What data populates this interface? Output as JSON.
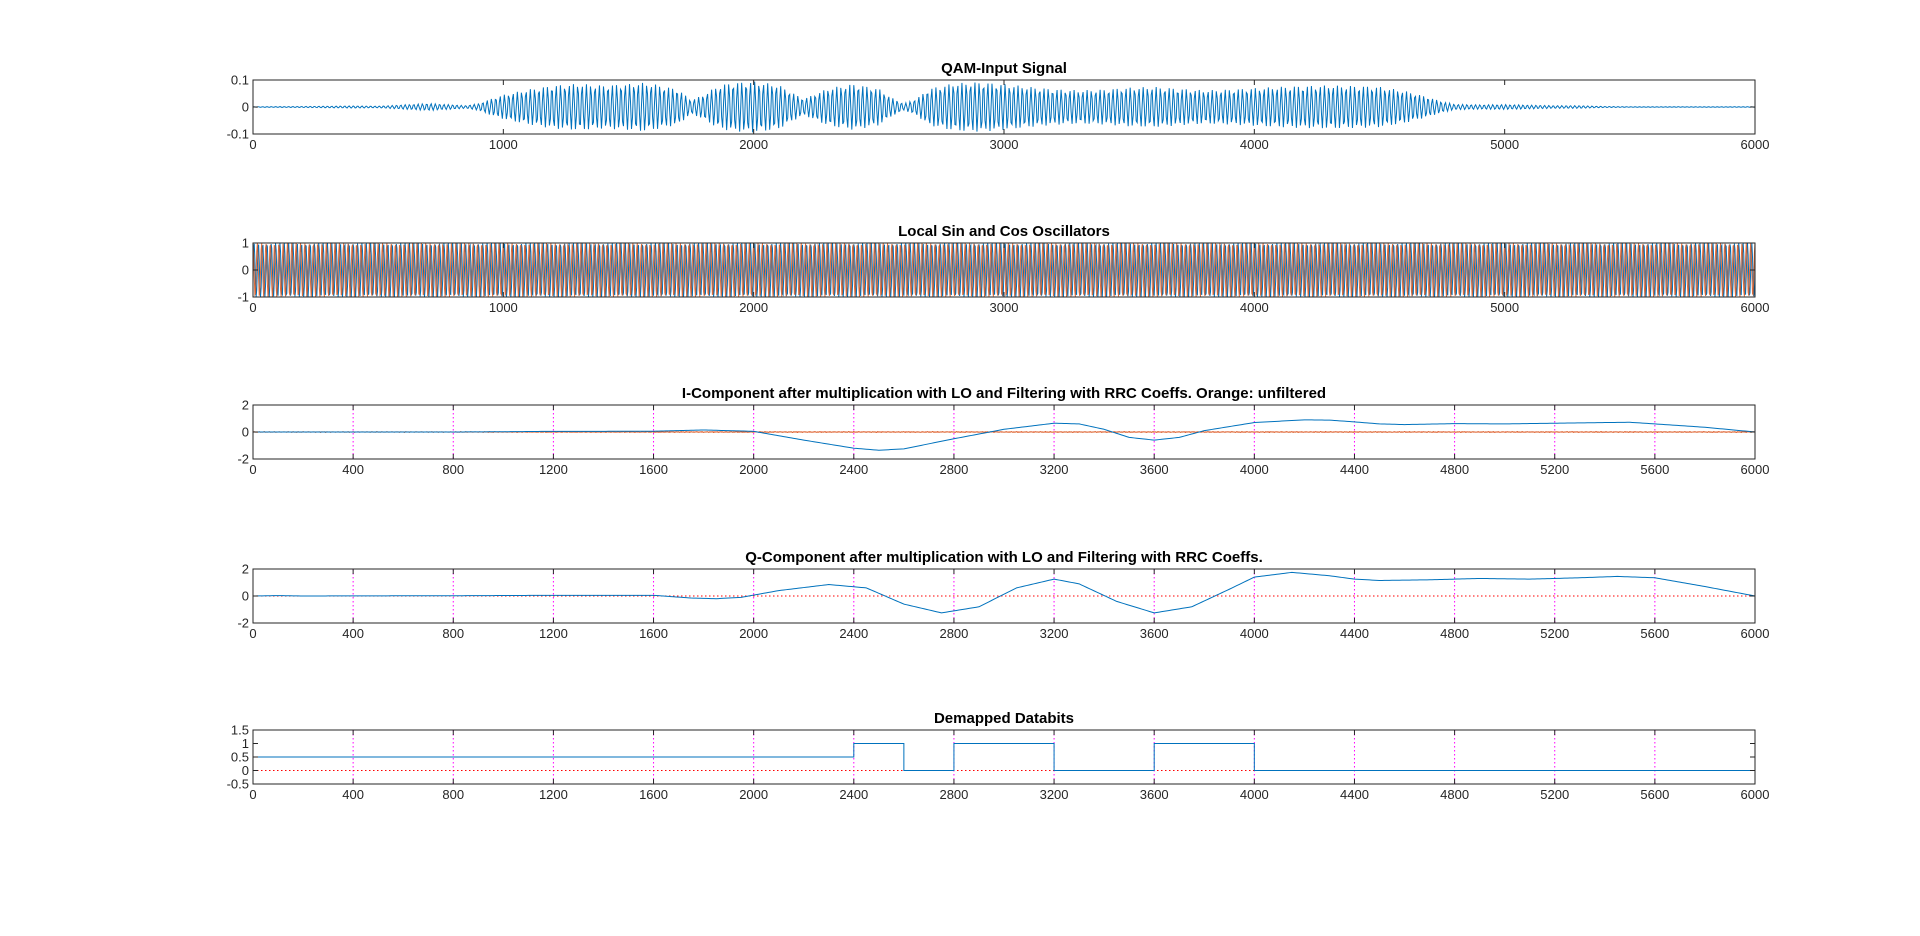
{
  "chart_data": [
    {
      "type": "line",
      "title": "QAM-Input Signal",
      "xlim": [
        0,
        6000
      ],
      "ylim": [
        -0.1,
        0.1
      ],
      "xticks": [
        0,
        1000,
        2000,
        3000,
        4000,
        5000,
        6000
      ],
      "yticks": [
        -0.1,
        0,
        0.1
      ],
      "ytick_labels": [
        "-0.1",
        "0",
        "0.1"
      ],
      "grid": false,
      "carrier_cycles_per_1000_samples": 58,
      "series": [
        {
          "color": "#0072BD",
          "envelope": {
            "x": [
              0,
              200,
              400,
              500,
              600,
              700,
              780,
              850,
              900,
              950,
              1000,
              1100,
              1200,
              1300,
              1400,
              1500,
              1550,
              1600,
              1700,
              1750,
              1800,
              1850,
              1900,
              2000,
              2100,
              2150,
              2200,
              2250,
              2300,
              2400,
              2500,
              2550,
              2600,
              2650,
              2700,
              2800,
              2900,
              3000,
              3100,
              3200,
              3300,
              3400,
              3500,
              3600,
              3700,
              3800,
              3900,
              4000,
              4100,
              4200,
              4300,
              4400,
              4500,
              4600,
              4700,
              4750,
              4800,
              4900,
              5000,
              5100,
              5200,
              5300,
              5400,
              5500,
              6000
            ],
            "y": [
              0.001,
              0.002,
              0.004,
              0.003,
              0.008,
              0.013,
              0.009,
              0.005,
              0.012,
              0.03,
              0.045,
              0.065,
              0.08,
              0.086,
              0.08,
              0.085,
              0.09,
              0.085,
              0.065,
              0.025,
              0.045,
              0.075,
              0.088,
              0.095,
              0.082,
              0.055,
              0.03,
              0.05,
              0.07,
              0.085,
              0.068,
              0.035,
              0.012,
              0.03,
              0.068,
              0.088,
              0.092,
              0.085,
              0.075,
              0.066,
              0.062,
              0.065,
              0.072,
              0.075,
              0.068,
              0.062,
              0.065,
              0.07,
              0.075,
              0.078,
              0.08,
              0.078,
              0.075,
              0.06,
              0.035,
              0.02,
              0.01,
              0.008,
              0.009,
              0.007,
              0.005,
              0.005,
              0.002,
              0.001,
              0.001
            ]
          }
        }
      ]
    },
    {
      "type": "line",
      "title": "Local Sin and Cos Oscillators",
      "xlim": [
        0,
        6000
      ],
      "ylim": [
        -1,
        1
      ],
      "xticks": [
        0,
        1000,
        2000,
        3000,
        4000,
        5000,
        6000
      ],
      "yticks": [
        -1,
        0,
        1
      ],
      "ytick_labels": [
        "-1",
        "0",
        "1"
      ],
      "grid": false,
      "oscillator_cycles_per_1000_samples": 58,
      "series": [
        {
          "color": "#0072BD"
        },
        {
          "color": "#D95319"
        }
      ]
    },
    {
      "type": "line",
      "title": "I-Component after multiplication with LO and Filtering with RRC Coeffs. Orange: unfiltered",
      "xlim": [
        0,
        6000
      ],
      "ylim": [
        -2,
        2
      ],
      "xticks": [
        0,
        400,
        800,
        1200,
        1600,
        2000,
        2400,
        2800,
        3200,
        3600,
        4000,
        4400,
        4800,
        5200,
        5600,
        6000
      ],
      "yticks": [
        -2,
        0,
        2
      ],
      "ytick_labels": [
        "-2",
        "0",
        "2"
      ],
      "vertical_markers_color": "#FF00FF",
      "vertical_markers_x": [
        400,
        800,
        1200,
        1600,
        2000,
        2400,
        2800,
        3200,
        3600,
        4000,
        4400,
        4800,
        5200,
        5600
      ],
      "zero_line_color": "#FF0000",
      "series": [
        {
          "color": "#0072BD",
          "x": [
            0,
            800,
            1000,
            1200,
            1400,
            1600,
            1800,
            1900,
            2000,
            2200,
            2400,
            2500,
            2600,
            2800,
            3000,
            3200,
            3300,
            3400,
            3500,
            3600,
            3700,
            3800,
            4000,
            4200,
            4300,
            4400,
            4500,
            4600,
            4800,
            5000,
            5200,
            5400,
            5500,
            5600,
            5800,
            6000
          ],
          "y": [
            0,
            0,
            0.02,
            0.05,
            0.05,
            0.06,
            0.15,
            0.1,
            0.05,
            -0.6,
            -1.2,
            -1.35,
            -1.25,
            -0.5,
            0.2,
            0.65,
            0.6,
            0.2,
            -0.4,
            -0.6,
            -0.4,
            0.1,
            0.7,
            0.9,
            0.88,
            0.75,
            0.6,
            0.55,
            0.62,
            0.6,
            0.65,
            0.7,
            0.72,
            0.6,
            0.35,
            0
          ]
        },
        {
          "color": "#D95319",
          "x": [
            0,
            6000
          ],
          "y": [
            0,
            0
          ],
          "noise_amplitude": 0.03
        }
      ]
    },
    {
      "type": "line",
      "title": "Q-Component after multiplication with LO and Filtering with RRC Coeffs.",
      "xlim": [
        0,
        6000
      ],
      "ylim": [
        -2,
        2
      ],
      "xticks": [
        0,
        400,
        800,
        1200,
        1600,
        2000,
        2400,
        2800,
        3200,
        3600,
        4000,
        4400,
        4800,
        5200,
        5600,
        6000
      ],
      "yticks": [
        -2,
        0,
        2
      ],
      "ytick_labels": [
        "-2",
        "0",
        "2"
      ],
      "vertical_markers_color": "#FF00FF",
      "vertical_markers_x": [
        400,
        800,
        1200,
        1600,
        2000,
        2400,
        2800,
        3200,
        3600,
        4000,
        4400,
        4800,
        5200,
        5600
      ],
      "zero_line_color": "#FF0000",
      "series": [
        {
          "color": "#0072BD",
          "x": [
            0,
            100,
            200,
            400,
            800,
            1200,
            1600,
            1750,
            1850,
            1950,
            2100,
            2300,
            2450,
            2600,
            2750,
            2900,
            3050,
            3200,
            3300,
            3450,
            3600,
            3750,
            3900,
            4000,
            4150,
            4300,
            4400,
            4500,
            4700,
            4900,
            5100,
            5300,
            5450,
            5600,
            5800,
            6000
          ],
          "y": [
            0,
            0.03,
            0,
            0.01,
            0.02,
            0.05,
            0.05,
            -0.15,
            -0.2,
            -0.1,
            0.4,
            0.85,
            0.6,
            -0.6,
            -1.25,
            -0.8,
            0.6,
            1.25,
            0.9,
            -0.4,
            -1.25,
            -0.8,
            0.5,
            1.4,
            1.75,
            1.5,
            1.25,
            1.15,
            1.2,
            1.3,
            1.25,
            1.35,
            1.45,
            1.35,
            0.7,
            0
          ]
        }
      ]
    },
    {
      "type": "line",
      "title": "Demapped Databits",
      "xlim": [
        0,
        6000
      ],
      "ylim": [
        -0.5,
        1.5
      ],
      "xticks": [
        0,
        400,
        800,
        1200,
        1600,
        2000,
        2400,
        2800,
        3200,
        3600,
        4000,
        4400,
        4800,
        5200,
        5600,
        6000
      ],
      "yticks": [
        -0.5,
        0,
        0.5,
        1,
        1.5
      ],
      "ytick_labels": [
        "-0.5",
        "0",
        "0.5",
        "1",
        "1.5"
      ],
      "vertical_markers_color": "#FF00FF",
      "vertical_markers_x": [
        400,
        800,
        1200,
        1600,
        2000,
        2400,
        2800,
        3200,
        3600,
        4000,
        4400,
        4800,
        5200,
        5600
      ],
      "zero_line_color": "#FF0000",
      "series": [
        {
          "color": "#0072BD",
          "step": true,
          "x": [
            0,
            2400,
            2400,
            2600,
            2600,
            2800,
            2800,
            3200,
            3200,
            3600,
            3600,
            4000,
            4000,
            6000
          ],
          "y": [
            0.5,
            0.5,
            1,
            1,
            0,
            0,
            1,
            1,
            0,
            0,
            1,
            1,
            0,
            0
          ]
        }
      ]
    }
  ]
}
